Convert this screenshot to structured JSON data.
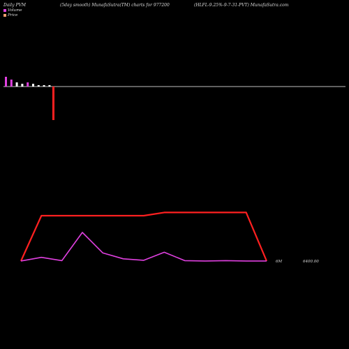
{
  "header": {
    "left": "Daily PVM",
    "middle": "(5day smooth) MunafaSutra(TM) charts for 977200",
    "right": "(HLFL-9.25%-9-7-31-PVT) MunafaSutra.com"
  },
  "legend": [
    {
      "label": "Volume",
      "color": "#e040e0"
    },
    {
      "label": "Price",
      "color": "#f4a070"
    }
  ],
  "colors": {
    "background": "#000000",
    "baseline": "#c0c0c0",
    "volume_up": "#e040e0",
    "volume_down": "#ffffff",
    "volume_spike": "#ff2020",
    "price_line": "#ff2020",
    "pvm_line": "#e040e0"
  },
  "chart_data": {
    "type": "line",
    "y_axis_labels": [
      {
        "text": "6M",
        "value": 6000000
      },
      {
        "text": "6400.00",
        "value": 6400
      }
    ],
    "volume_bars": {
      "values": [
        14,
        10,
        6,
        4,
        6,
        4,
        2,
        2,
        2,
        -48
      ],
      "colors": [
        "magenta",
        "magenta",
        "white",
        "white",
        "magenta",
        "white",
        "white",
        "white",
        "white",
        "red"
      ]
    },
    "price_series": {
      "x": [
        0,
        1,
        2,
        3,
        4,
        5,
        6,
        7,
        8,
        9,
        10,
        11,
        12
      ],
      "values": [
        6400,
        6470,
        6470,
        6470,
        6470,
        6470,
        6470,
        6475,
        6475,
        6475,
        6475,
        6475,
        6400
      ]
    },
    "volume_series": {
      "x": [
        0,
        1,
        2,
        3,
        4,
        5,
        6,
        7,
        8,
        9,
        10,
        11,
        12
      ],
      "values": [
        0.1,
        0.6,
        0.15,
        4.0,
        1.2,
        0.4,
        0.2,
        1.3,
        0.15,
        0.1,
        0.15,
        0.1,
        0.1
      ]
    }
  }
}
